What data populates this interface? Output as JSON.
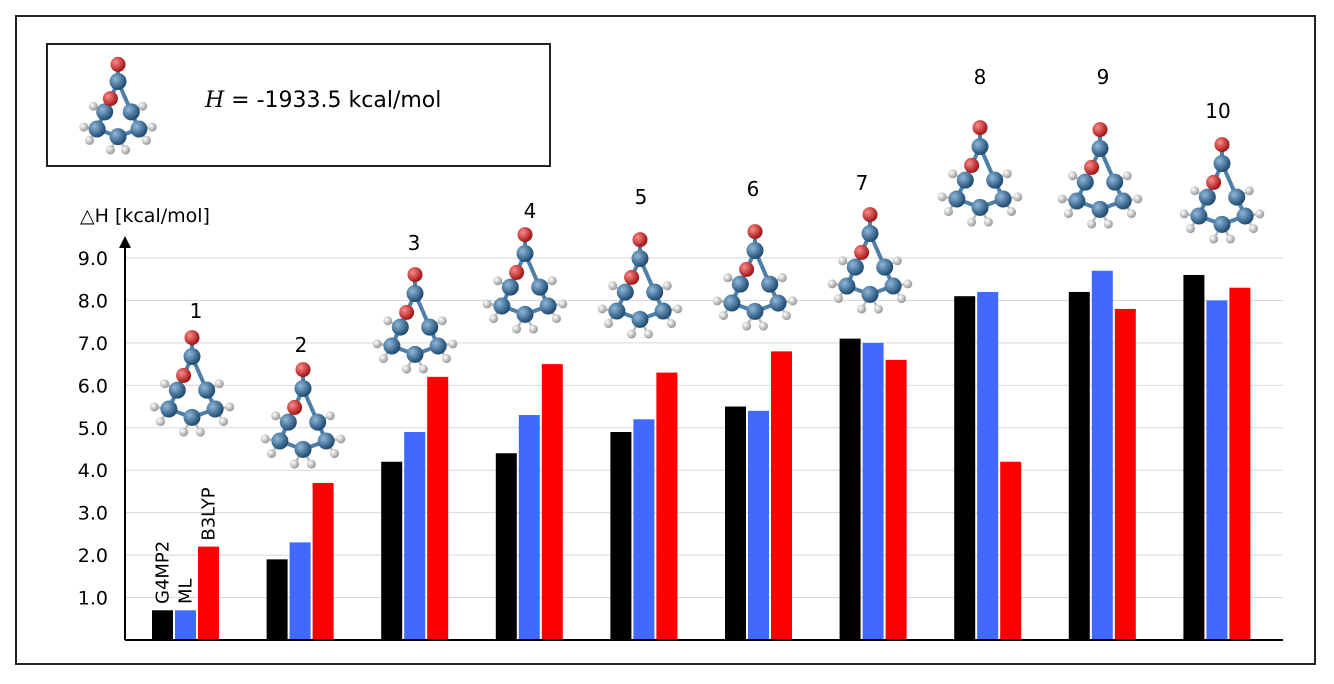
{
  "reference": {
    "prefix": "",
    "var": "H",
    "text": " = -1933.5 kcal/mol"
  },
  "chart_data": {
    "type": "bar",
    "title": "",
    "ylabel": "△H [kcal/mol]",
    "xlabel": "",
    "ylim": [
      0,
      9.0
    ],
    "yticks": [
      "1.0",
      "2.0",
      "3.0",
      "4.0",
      "5.0",
      "6.0",
      "7.0",
      "8.0",
      "9.0"
    ],
    "categories": [
      "1",
      "2",
      "3",
      "4",
      "5",
      "6",
      "7",
      "8",
      "9",
      "10"
    ],
    "series": [
      {
        "name": "G4MP2",
        "color": "#000000",
        "values": [
          0.7,
          1.9,
          4.2,
          4.4,
          4.9,
          5.5,
          7.1,
          8.1,
          8.2,
          8.6
        ]
      },
      {
        "name": "ML",
        "color": "#4169ff",
        "values": [
          0.7,
          2.3,
          4.9,
          5.3,
          5.2,
          5.4,
          7.0,
          8.2,
          8.7,
          8.0
        ]
      },
      {
        "name": "B3LYP",
        "color": "#ff0000",
        "values": [
          2.2,
          3.7,
          6.2,
          6.5,
          6.3,
          6.8,
          6.6,
          4.2,
          7.8,
          8.3
        ]
      }
    ]
  },
  "colors": {
    "carbon": "#3d6f9c",
    "oxygen": "#d03030",
    "hydrogen": "#dcdcdc",
    "bond": "#4e7fa8",
    "grid": "#d8d8d8"
  }
}
